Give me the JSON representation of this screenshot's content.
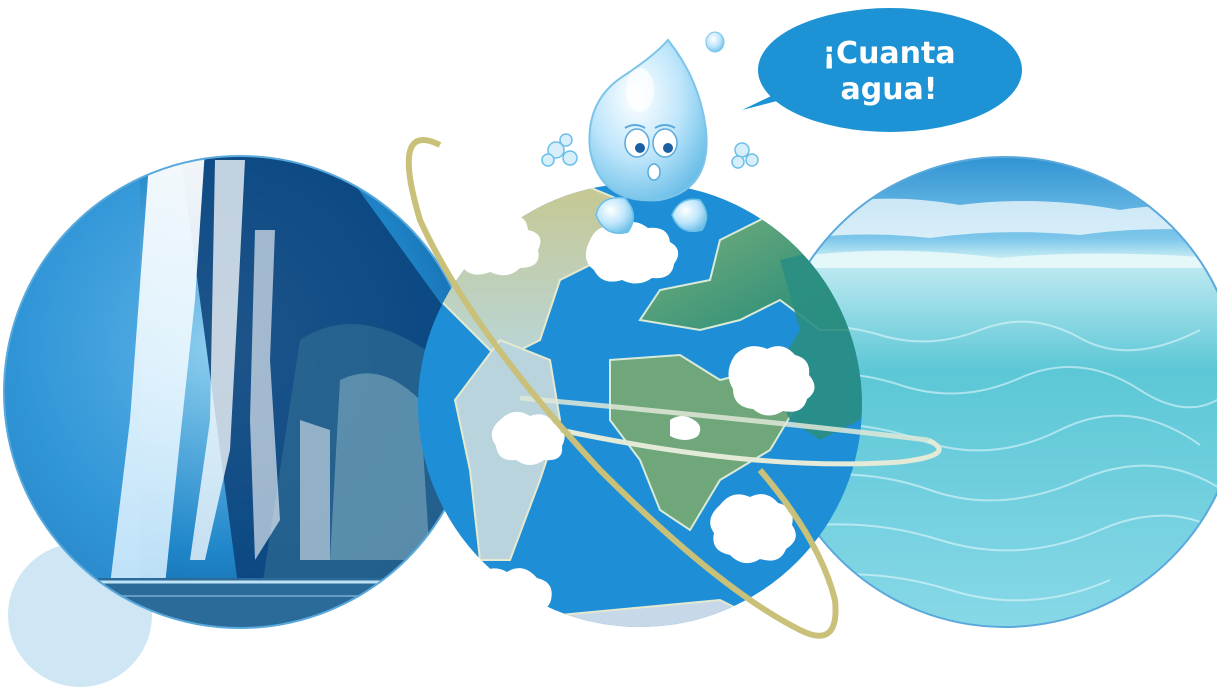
{
  "speech_bubble": {
    "line1": "¡Cuanta",
    "line2": "agua!"
  },
  "images": {
    "left": "waterfall-photo",
    "center": "earth-globe-illustration",
    "right": "sea-water-photo",
    "character": "water-drop-mascot"
  },
  "colors": {
    "ocean_blue": "#1e8fd6",
    "bubble_blue": "#1d93d5",
    "orbit_ring": "#c9c07a",
    "light_blob": "#cfe6f4"
  }
}
